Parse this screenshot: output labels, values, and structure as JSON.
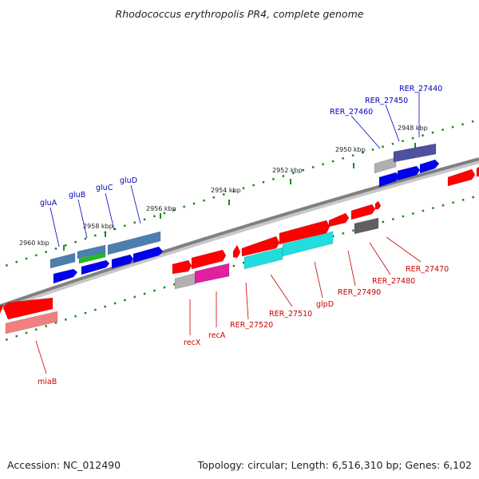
{
  "title": "Rhodococcus erythropolis PR4, complete genome",
  "footer": {
    "accession": "Accession: NC_012490",
    "topology": "Topology: circular; Length: 6,516,310 bp; Genes: 6,102"
  },
  "colors": {
    "forward_strand": "#ff0000",
    "reverse_strand": "#0000ee",
    "forward_label": "#cc0000",
    "reverse_label": "#0000bb",
    "backbone": "#808080",
    "ruler_dots": "#1b8a1b",
    "steel_blue": "#4a7fb0",
    "cyan": "#22dddd",
    "magenta": "#e020a0",
    "light_red": "#f08080",
    "slate": "#5050a0",
    "grey": "#b0b0b0",
    "dark_grey": "#606060",
    "green": "#22bb22"
  },
  "ticks": [
    "2960 kbp",
    "2958 kbp",
    "2956 kbp",
    "2954 kbp",
    "2952 kbp",
    "2950 kbp",
    "2948 kbp"
  ],
  "reverse_genes": [
    "gluA",
    "gluB",
    "gluC",
    "gluD",
    "RER_27460",
    "RER_27450",
    "RER_27440"
  ],
  "forward_genes": [
    "miaB",
    "recX",
    "recA",
    "RER_27520",
    "RER_27510",
    "glpD",
    "RER_27490",
    "RER_27480",
    "RER_27470"
  ]
}
